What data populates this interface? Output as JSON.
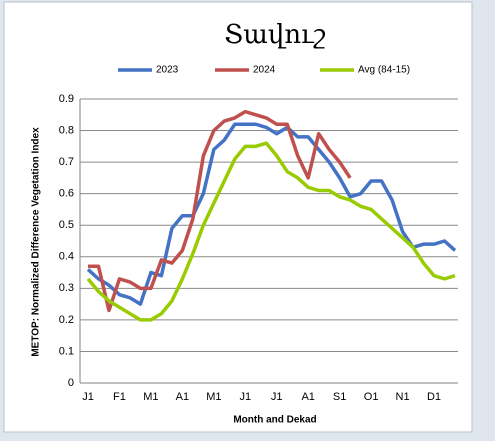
{
  "chart_data": {
    "type": "line",
    "title": "Տավուշ",
    "x_label": "Month and Dekad",
    "y_label": "METOP: Normalized Difference Vegetation Index",
    "categories": [
      "J1",
      null,
      null,
      "F1",
      null,
      null,
      "M1",
      null,
      null,
      "A1",
      null,
      null,
      "M1",
      null,
      null,
      "J1",
      null,
      null,
      "J1",
      null,
      null,
      "A1",
      null,
      null,
      "S1",
      null,
      null,
      "O1",
      null,
      null,
      "N1",
      null,
      null,
      "D1",
      null,
      null
    ],
    "series": [
      {
        "name": "2023",
        "color": "#4472c4",
        "values": [
          0.36,
          0.33,
          0.31,
          0.28,
          0.27,
          0.25,
          0.35,
          0.34,
          0.49,
          0.53,
          0.53,
          0.6,
          0.74,
          0.77,
          0.82,
          0.82,
          0.82,
          0.81,
          0.79,
          0.81,
          0.78,
          0.78,
          0.74,
          0.7,
          0.65,
          0.59,
          0.6,
          0.64,
          0.64,
          0.58,
          0.48,
          0.43,
          0.44,
          0.44,
          0.45,
          0.42
        ]
      },
      {
        "name": "2024",
        "color": "#c0504d",
        "values": [
          0.37,
          0.37,
          0.23,
          0.33,
          0.32,
          0.3,
          0.3,
          0.39,
          0.38,
          0.42,
          0.52,
          0.72,
          0.8,
          0.83,
          0.84,
          0.86,
          0.85,
          0.84,
          0.82,
          0.82,
          0.72,
          0.65,
          0.79,
          0.74,
          0.7,
          0.65,
          null,
          null,
          null,
          null,
          null,
          null,
          null,
          null,
          null,
          null
        ]
      },
      {
        "name": "Avg (84-15)",
        "color": "#99cc00",
        "values": [
          0.33,
          0.29,
          0.26,
          0.24,
          0.22,
          0.2,
          0.2,
          0.22,
          0.26,
          0.33,
          0.41,
          0.5,
          0.57,
          0.64,
          0.71,
          0.75,
          0.75,
          0.76,
          0.72,
          0.67,
          0.65,
          0.62,
          0.61,
          0.61,
          0.59,
          0.58,
          0.56,
          0.55,
          0.52,
          0.49,
          0.46,
          0.43,
          0.38,
          0.34,
          0.33,
          0.34
        ]
      }
    ],
    "ylim": [
      0,
      0.9
    ],
    "yticks": [
      0,
      0.1,
      0.2,
      0.3,
      0.4,
      0.5,
      0.6,
      0.7,
      0.8,
      0.9
    ],
    "grid": true
  }
}
